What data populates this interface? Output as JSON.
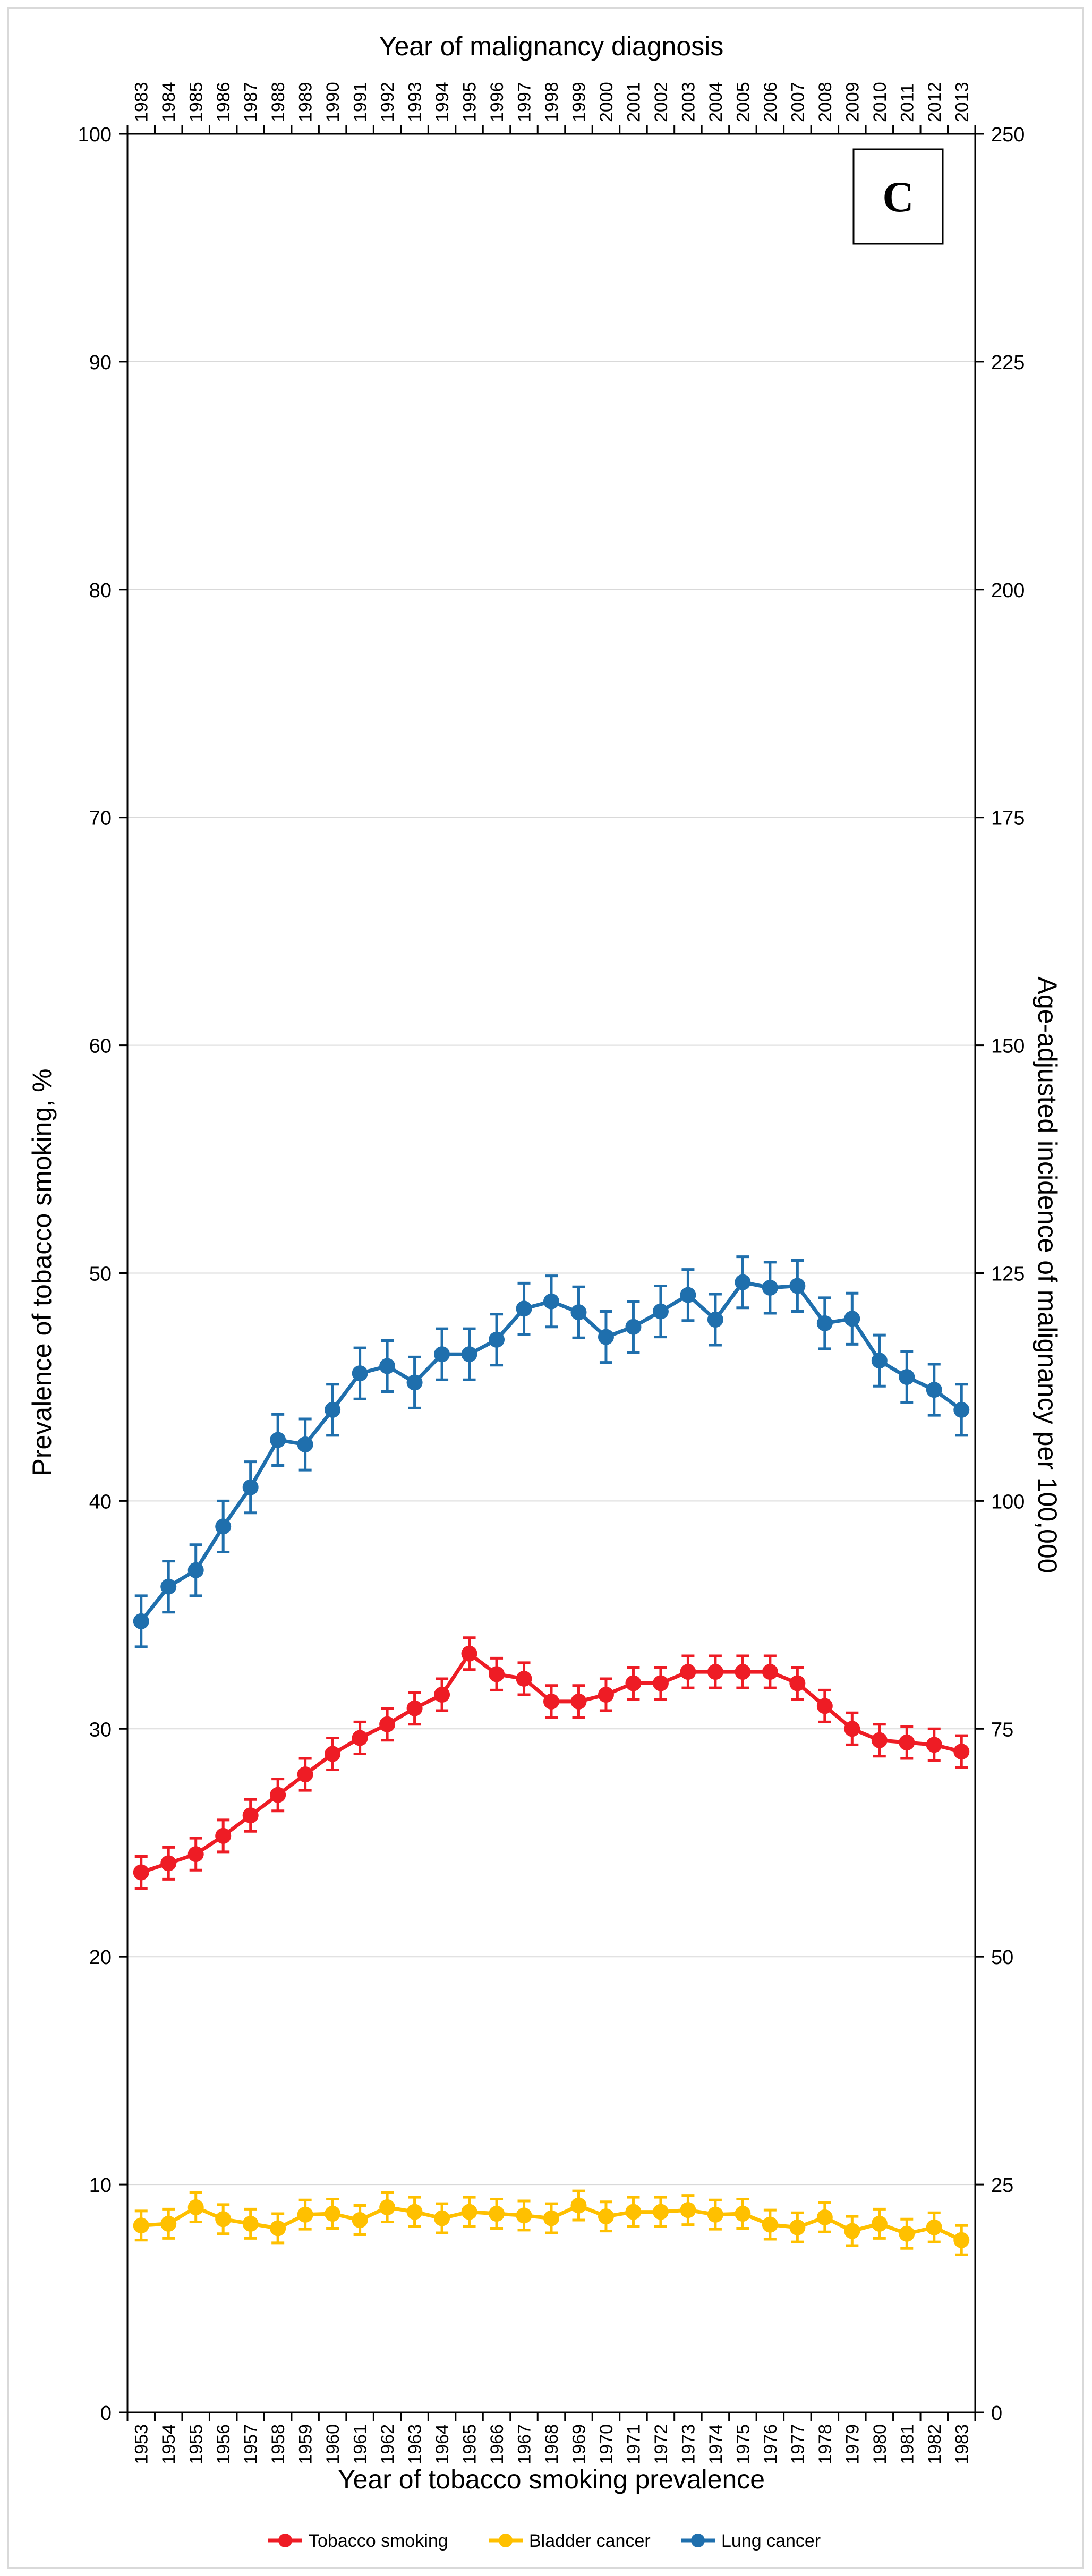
{
  "chart_data": {
    "type": "line",
    "panel_label": "C",
    "x_bottom_label": "Year of tobacco smoking prevalence",
    "x_top_label": "Year of malignancy diagnosis",
    "y_left_label": "Prevalence of tobacco smoking, %",
    "y_right_label": "Age-adjusted incidence of malignancy per 100,000",
    "y_left_range": [
      0,
      100
    ],
    "y_left_ticks": [
      0,
      10,
      20,
      30,
      40,
      50,
      60,
      70,
      80,
      90,
      100
    ],
    "y_right_range": [
      0,
      250
    ],
    "y_right_ticks": [
      0,
      25,
      50,
      75,
      100,
      125,
      150,
      175,
      200,
      225,
      250
    ],
    "grid": "horizontal",
    "legend_position": "bottom",
    "x_bottom": [
      "1953",
      "1954",
      "1955",
      "1956",
      "1957",
      "1958",
      "1959",
      "1960",
      "1961",
      "1962",
      "1963",
      "1964",
      "1965",
      "1966",
      "1967",
      "1968",
      "1969",
      "1970",
      "1971",
      "1972",
      "1973",
      "1974",
      "1975",
      "1976",
      "1977",
      "1978",
      "1979",
      "1980",
      "1981",
      "1982",
      "1983"
    ],
    "x_top": [
      "1983",
      "1984",
      "1985",
      "1986",
      "1987",
      "1988",
      "1989",
      "1990",
      "1991",
      "1992",
      "1993",
      "1994",
      "1995",
      "1996",
      "1997",
      "1998",
      "1999",
      "2000",
      "2001",
      "2002",
      "2003",
      "2004",
      "2005",
      "2006",
      "2007",
      "2008",
      "2009",
      "2010",
      "2011",
      "2012",
      "2013"
    ],
    "series": [
      {
        "name": "Tobacco smoking",
        "axis": "left",
        "color": "#ee1c25",
        "values": [
          23.7,
          24.1,
          24.5,
          25.3,
          26.2,
          27.1,
          28.0,
          28.9,
          29.6,
          30.2,
          30.9,
          31.5,
          33.3,
          32.4,
          32.2,
          31.2,
          31.2,
          31.5,
          32.0,
          32.0,
          32.5,
          32.5,
          32.5,
          32.5,
          32.0,
          31.0,
          30.0,
          29.5,
          29.4,
          29.3,
          29.0
        ],
        "error": 0.7
      },
      {
        "name": "Bladder cancer",
        "axis": "right",
        "color": "#ffc000",
        "values": [
          20.5,
          20.7,
          22.5,
          21.2,
          20.7,
          20.2,
          21.7,
          21.8,
          21.1,
          22.5,
          22.0,
          21.3,
          22.0,
          21.8,
          21.6,
          21.3,
          22.7,
          21.5,
          22.0,
          22.0,
          22.2,
          21.7,
          21.8,
          20.6,
          20.3,
          21.4,
          19.9,
          20.7,
          19.6,
          20.3,
          18.9
        ],
        "error": 1.6
      },
      {
        "name": "Lung cancer",
        "axis": "right",
        "color": "#1f6fad",
        "values": [
          86.8,
          90.6,
          92.4,
          97.2,
          101.5,
          106.7,
          106.2,
          110.0,
          114.0,
          114.8,
          113.0,
          116.1,
          116.1,
          117.7,
          121.1,
          121.9,
          120.7,
          118.0,
          119.1,
          120.8,
          122.6,
          119.9,
          124.0,
          123.4,
          123.6,
          119.5,
          120.0,
          115.4,
          113.6,
          112.2,
          110.0
        ],
        "error": 2.8
      }
    ]
  }
}
